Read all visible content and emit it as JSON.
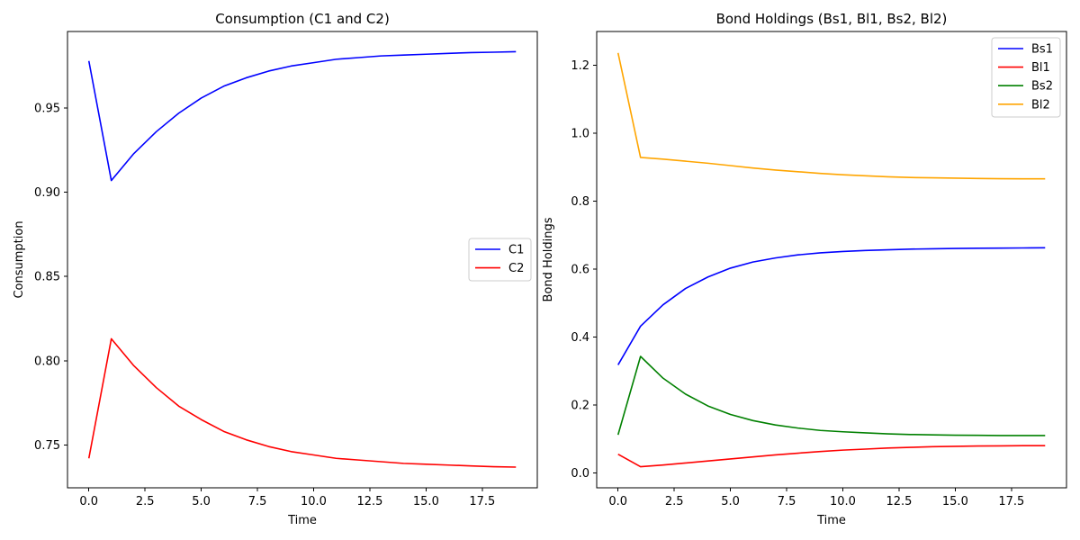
{
  "chart_data": [
    {
      "type": "line",
      "title": "Consumption (C1 and C2)",
      "xlabel": "Time",
      "ylabel": "Consumption",
      "xlim": [
        -0.95,
        19.95
      ],
      "ylim": [
        0.7245,
        0.9955
      ],
      "xticks": [
        0.0,
        2.5,
        5.0,
        7.5,
        10.0,
        12.5,
        15.0,
        17.5
      ],
      "xtick_labels": [
        "0.0",
        "2.5",
        "5.0",
        "7.5",
        "10.0",
        "12.5",
        "15.0",
        "17.5"
      ],
      "yticks": [
        0.75,
        0.8,
        0.85,
        0.9,
        0.95
      ],
      "ytick_labels": [
        "0.75",
        "0.80",
        "0.85",
        "0.90",
        "0.95"
      ],
      "legend_position": "center-right",
      "grid": false,
      "x": [
        0,
        1,
        2,
        3,
        4,
        5,
        6,
        7,
        8,
        9,
        10,
        11,
        12,
        13,
        14,
        15,
        16,
        17,
        18,
        19
      ],
      "series": [
        {
          "name": "C1",
          "color": "#0000ff",
          "values": [
            0.978,
            0.907,
            0.923,
            0.936,
            0.947,
            0.956,
            0.963,
            0.968,
            0.972,
            0.975,
            0.977,
            0.979,
            0.98,
            0.981,
            0.9815,
            0.982,
            0.9825,
            0.983,
            0.9832,
            0.9835
          ]
        },
        {
          "name": "C2",
          "color": "#ff0000",
          "values": [
            0.742,
            0.813,
            0.797,
            0.784,
            0.773,
            0.765,
            0.758,
            0.753,
            0.749,
            0.746,
            0.744,
            0.742,
            0.741,
            0.74,
            0.739,
            0.7385,
            0.738,
            0.7375,
            0.737,
            0.7368
          ]
        }
      ]
    },
    {
      "type": "line",
      "title": "Bond Holdings (Bs1, Bl1, Bs2, Bl2)",
      "xlabel": "Time",
      "ylabel": "Bond Holdings",
      "xlim": [
        -0.95,
        19.95
      ],
      "ylim": [
        -0.044,
        1.3
      ],
      "xticks": [
        0.0,
        2.5,
        5.0,
        7.5,
        10.0,
        12.5,
        15.0,
        17.5
      ],
      "xtick_labels": [
        "0.0",
        "2.5",
        "5.0",
        "7.5",
        "10.0",
        "12.5",
        "15.0",
        "17.5"
      ],
      "yticks": [
        0.0,
        0.2,
        0.4,
        0.6,
        0.8,
        1.0,
        1.2
      ],
      "ytick_labels": [
        "0.0",
        "0.2",
        "0.4",
        "0.6",
        "0.8",
        "1.0",
        "1.2"
      ],
      "legend_position": "top-right",
      "grid": false,
      "x": [
        0,
        1,
        2,
        3,
        4,
        5,
        6,
        7,
        8,
        9,
        10,
        11,
        12,
        13,
        14,
        15,
        16,
        17,
        18,
        19
      ],
      "series": [
        {
          "name": "Bs1",
          "color": "#0000ff",
          "values": [
            0.318,
            0.432,
            0.495,
            0.543,
            0.577,
            0.603,
            0.621,
            0.633,
            0.642,
            0.648,
            0.652,
            0.655,
            0.657,
            0.659,
            0.66,
            0.661,
            0.6615,
            0.662,
            0.6625,
            0.663
          ]
        },
        {
          "name": "Bl1",
          "color": "#ff0000",
          "values": [
            0.055,
            0.018,
            0.023,
            0.029,
            0.035,
            0.041,
            0.047,
            0.053,
            0.058,
            0.063,
            0.067,
            0.07,
            0.073,
            0.075,
            0.077,
            0.078,
            0.079,
            0.0795,
            0.08,
            0.08
          ]
        },
        {
          "name": "Bs2",
          "color": "#008000",
          "values": [
            0.112,
            0.343,
            0.279,
            0.232,
            0.197,
            0.172,
            0.154,
            0.141,
            0.132,
            0.125,
            0.121,
            0.118,
            0.115,
            0.113,
            0.112,
            0.111,
            0.1105,
            0.11,
            0.11,
            0.1098
          ]
        },
        {
          "name": "Bl2",
          "color": "#ffa500",
          "values": [
            1.237,
            0.929,
            0.924,
            0.918,
            0.912,
            0.905,
            0.898,
            0.892,
            0.887,
            0.882,
            0.878,
            0.875,
            0.872,
            0.87,
            0.869,
            0.868,
            0.867,
            0.8665,
            0.866,
            0.866
          ]
        }
      ]
    }
  ]
}
